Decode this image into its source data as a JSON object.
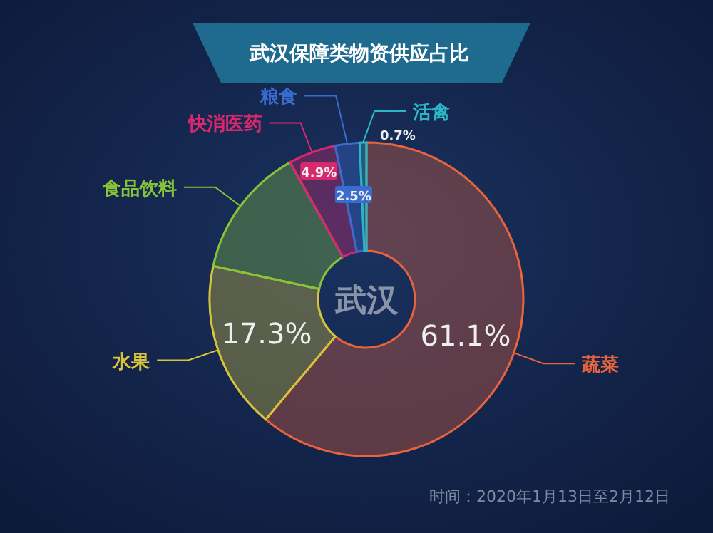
{
  "chart_data": {
    "type": "donut",
    "title": "武汉保障类物资供应占比",
    "categories": [
      "蔬菜",
      "水果",
      "食品饮料",
      "快消医药",
      "粮食",
      "活禽"
    ],
    "values": [
      61.1,
      17.3,
      13.5,
      4.9,
      2.5,
      0.7
    ],
    "value_labels": [
      "61.1%",
      "17.3%",
      null,
      "4.9%",
      "2.5%",
      "0.7%"
    ],
    "colors": [
      "#e8643c",
      "#d8c43a",
      "#86c23a",
      "#d8286e",
      "#3a6cd0",
      "#2ab6c6"
    ],
    "annotations": [
      "武汉",
      "时间：2020年1月13日至2月12日"
    ]
  }
}
